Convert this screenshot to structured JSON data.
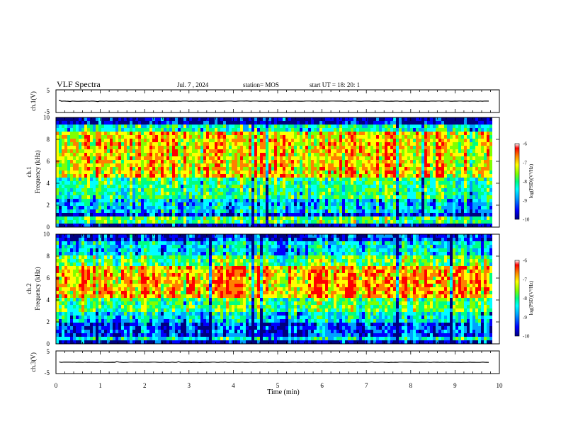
{
  "header": {
    "title": "VLF Spectra",
    "date": "Jul. 7 , 2024",
    "station": "station= MOS",
    "start": "start UT = 18: 20: 1"
  },
  "colors": {
    "spectrum": [
      "#000080",
      "#0000ff",
      "#00a0ff",
      "#00ffff",
      "#00ff80",
      "#80ff00",
      "#ffff00",
      "#ff8000",
      "#ff0000"
    ]
  },
  "chart_data": [
    {
      "type": "line",
      "name": "ch1-waveform",
      "ylabel": "ch.1(V)",
      "yticks": [
        "5",
        "-5"
      ],
      "ylim": [
        -5,
        5
      ],
      "value_level": 0
    },
    {
      "type": "heatmap",
      "name": "ch1-spectrogram",
      "ylabel": "ch.1\nFrequency (kHz)",
      "yticks": [
        "0",
        "2",
        "4",
        "6",
        "8",
        "10"
      ],
      "ylim": [
        0,
        10
      ],
      "colorbar": {
        "label": "log(PSD)(V²/Hz)",
        "ticks": [
          "-6",
          "-7",
          "-8",
          "-9",
          "-10"
        ],
        "range": [
          -10,
          -6
        ]
      }
    },
    {
      "type": "heatmap",
      "name": "ch2-spectrogram",
      "ylabel": "ch.2\nFrequency (kHz)",
      "yticks": [
        "0",
        "2",
        "4",
        "6",
        "8",
        "10"
      ],
      "ylim": [
        0,
        10
      ],
      "colorbar": {
        "label": "log(PSD)(V²/Hz)",
        "ticks": [
          "-6",
          "-7",
          "-8",
          "-9",
          "-10"
        ],
        "range": [
          -10,
          -6
        ]
      }
    },
    {
      "type": "line",
      "name": "ch3-waveform",
      "ylabel": "ch.3(V)",
      "yticks": [
        "5",
        "-5"
      ],
      "ylim": [
        -5,
        5
      ],
      "value_level": 0
    }
  ],
  "xaxis": {
    "label": "Time (min)",
    "ticks": [
      "0",
      "1",
      "2",
      "3",
      "4",
      "5",
      "6",
      "7",
      "8",
      "9",
      "10"
    ],
    "xlim": [
      0,
      10
    ],
    "data_end": 9.8
  }
}
